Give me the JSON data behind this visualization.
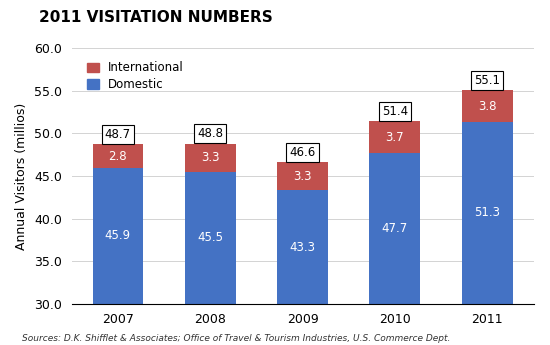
{
  "title": "2011 Visitation Numbers",
  "years": [
    "2007",
    "2008",
    "2009",
    "2010",
    "2011"
  ],
  "domestic": [
    45.9,
    45.5,
    43.3,
    47.7,
    51.3
  ],
  "international": [
    2.8,
    3.3,
    3.3,
    3.7,
    3.8
  ],
  "totals": [
    48.7,
    48.8,
    46.6,
    51.4,
    55.1
  ],
  "domestic_color": "#4472C4",
  "international_color": "#C0504D",
  "ylabel": "Annual Visitors (millios)",
  "ylim_min": 30.0,
  "ylim_max": 60.0,
  "yticks": [
    30.0,
    35.0,
    40.0,
    45.0,
    50.0,
    55.0,
    60.0
  ],
  "source_text": "Sources: D.K. Shifflet & Associates; Office of Travel & Tourism Industries, U.S. Commerce Dept.",
  "background_color": "#FFFFFF",
  "bar_width": 0.55
}
